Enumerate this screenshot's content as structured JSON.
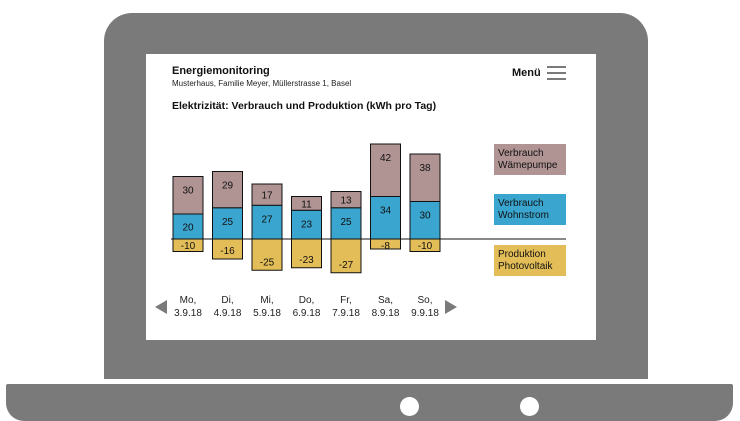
{
  "app": {
    "title": "Energiemonitoring",
    "subtitle": "Musterhaus, Familie Meyer, Müllerstrasse 1, Basel",
    "menu_label": "Menü"
  },
  "nav": {
    "prev_icon": "triangle-left-icon",
    "next_icon": "triangle-right-icon",
    "menu_icon": "hamburger-icon"
  },
  "days": [
    {
      "day": "Mo,",
      "date": "3.9.18"
    },
    {
      "day": "Di,",
      "date": "4.9.18"
    },
    {
      "day": "Mi,",
      "date": "5.9.18"
    },
    {
      "day": "Do,",
      "date": "6.9.18"
    },
    {
      "day": "Fr,",
      "date": "7.9.18"
    },
    {
      "day": "Sa,",
      "date": "8.9.18"
    },
    {
      "day": "So,",
      "date": "9.9.18"
    }
  ],
  "colors": {
    "heatpump": "#b09393",
    "household": "#3aa5cf",
    "pv": "#e3bd57",
    "frame": "#7a7a7a"
  },
  "chart_data": {
    "type": "bar",
    "stacked": true,
    "title": "Elektrizität: Verbrauch und Produktion (kWh pro Tag)",
    "categories": [
      "Mo, 3.9.18",
      "Di, 4.9.18",
      "Mi, 5.9.18",
      "Do, 6.9.18",
      "Fr, 7.9.18",
      "Sa, 8.9.18",
      "So, 9.9.18"
    ],
    "series": [
      {
        "name": "Verbrauch Wohnstrom",
        "legend_lines": [
          "Verbrauch",
          "Wohnstrom"
        ],
        "values": [
          20,
          25,
          27,
          23,
          25,
          34,
          30
        ]
      },
      {
        "name": "Verbrauch Wämepumpe",
        "legend_lines": [
          "Verbrauch",
          "Wämepumpe"
        ],
        "values": [
          30,
          29,
          17,
          11,
          13,
          42,
          38
        ]
      },
      {
        "name": "Produktion Photovoltaik",
        "legend_lines": [
          "Produktion",
          "Photovoltaik"
        ],
        "values": [
          -10,
          -16,
          -25,
          -23,
          -27,
          -8,
          -10
        ]
      }
    ],
    "legend_position": "right",
    "grid": false
  }
}
